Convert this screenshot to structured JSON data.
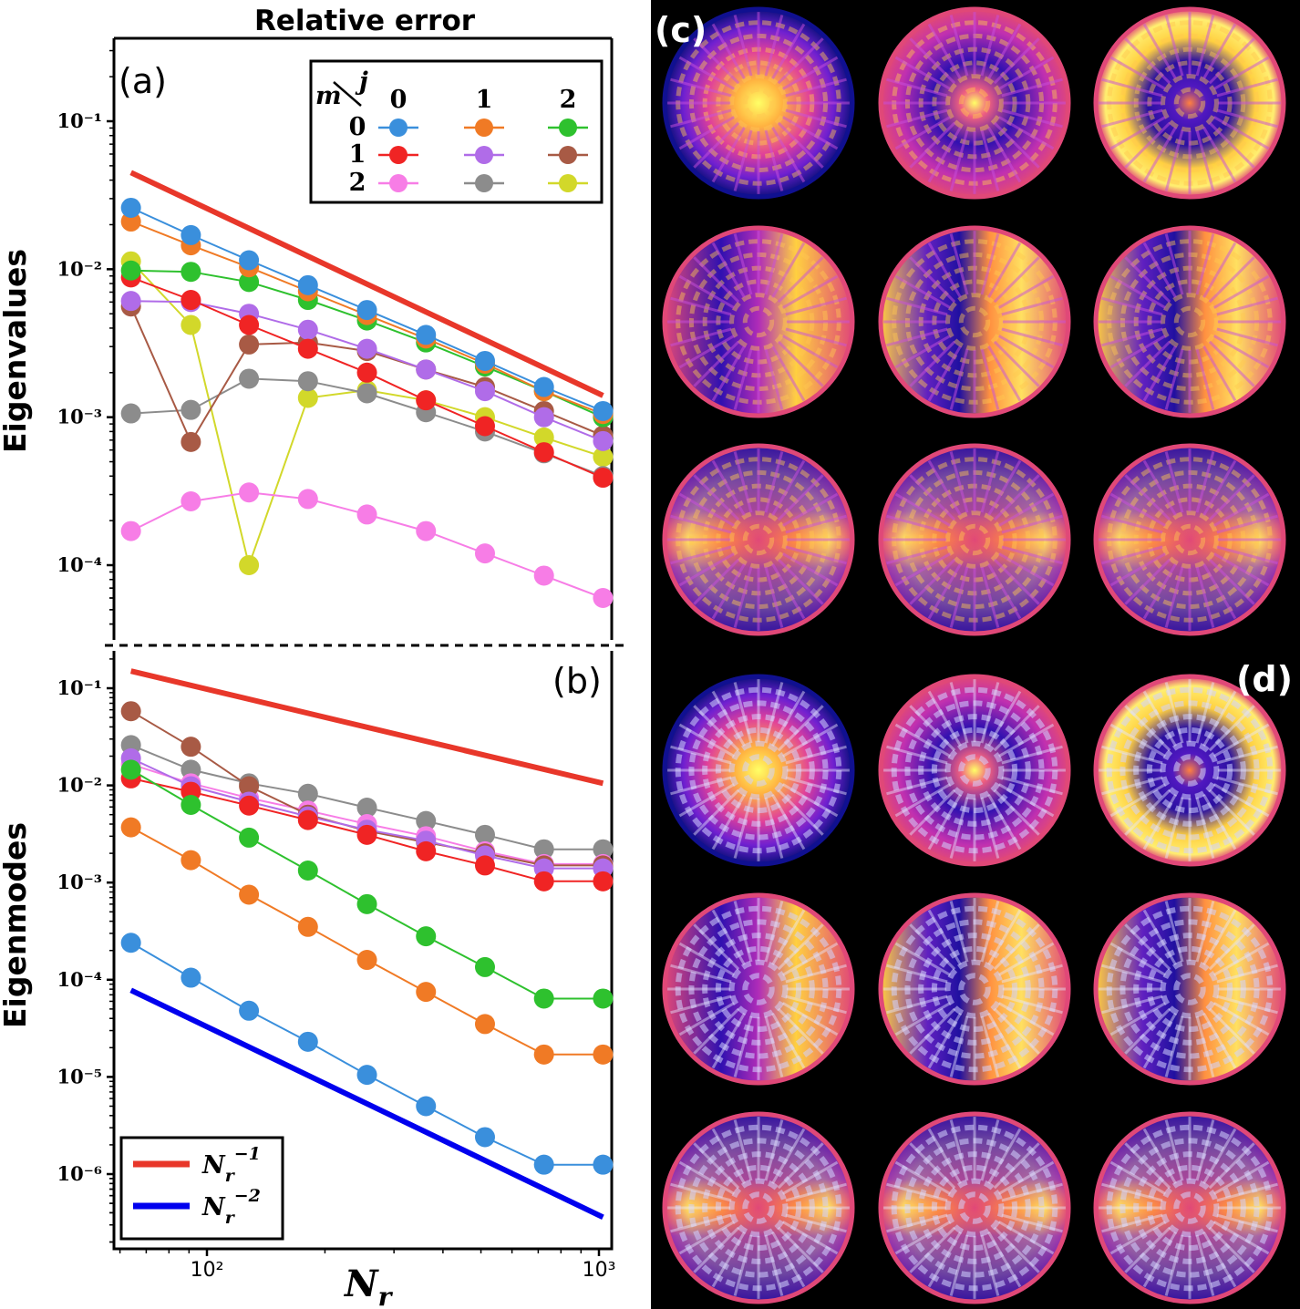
{
  "figure": {
    "title": "Relative error",
    "xlabel_base": "N",
    "xlabel_sub": "r",
    "panel_a": "(a)",
    "panel_b": "(b)",
    "panel_c": "(c)",
    "panel_d": "(d)"
  },
  "legend_top": {
    "header_m": "m",
    "header_j": "j",
    "cols": [
      "0",
      "1",
      "2"
    ],
    "rows": [
      "0",
      "1",
      "2"
    ]
  },
  "legend_bottom": {
    "entries": [
      {
        "base": "N",
        "sub": "r",
        "sup": "−1",
        "color": "#e8372a"
      },
      {
        "base": "N",
        "sub": "r",
        "sup": "−2",
        "color": "#0000ee"
      }
    ]
  },
  "colors": {
    "m0j0": "#3a8fdc",
    "m0j1": "#f07a25",
    "m0j2": "#2ec12e",
    "m1j0": "#f02424",
    "m1j1": "#b06ce8",
    "m1j2": "#a85a45",
    "m2j0": "#f77de6",
    "m2j1": "#8c8c8c",
    "m2j2": "#d2d82a"
  },
  "chart_data": [
    {
      "type": "line",
      "title": "Relative error",
      "ylabel": "Eigenvalues",
      "xlabel": "N_r",
      "xscale": "log",
      "yscale": "log",
      "xlim": [
        57,
        1100
      ],
      "ylim": [
        3e-05,
        0.3
      ],
      "xticks": [
        "10²",
        "10³"
      ],
      "yticks": [
        "10⁻¹",
        "10⁻²",
        "10⁻³",
        "10⁻⁴"
      ],
      "x": [
        64,
        91,
        128,
        181,
        256,
        362,
        512,
        724,
        1024
      ],
      "series": [
        {
          "name": "m=0 j=0",
          "color": "#3a8fdc",
          "values": [
            0.026,
            0.017,
            0.0115,
            0.0078,
            0.0053,
            0.0036,
            0.0024,
            0.0016,
            0.0011
          ]
        },
        {
          "name": "m=0 j=1",
          "color": "#f07a25",
          "values": [
            0.021,
            0.0145,
            0.0103,
            0.0071,
            0.0049,
            0.0034,
            0.0023,
            0.0015,
            0.00105
          ]
        },
        {
          "name": "m=0 j=2",
          "color": "#2ec12e",
          "values": [
            0.0098,
            0.0096,
            0.0082,
            0.0062,
            0.0045,
            0.0032,
            0.0022,
            0.0015,
            0.001
          ]
        },
        {
          "name": "m=1 j=0",
          "color": "#f02424",
          "values": [
            0.0088,
            0.0062,
            0.0042,
            0.0029,
            0.002,
            0.0013,
            0.00087,
            0.00058,
            0.00039
          ]
        },
        {
          "name": "m=1 j=1",
          "color": "#b06ce8",
          "values": [
            0.0061,
            0.006,
            0.005,
            0.0039,
            0.0029,
            0.0021,
            0.0015,
            0.001,
            0.00069
          ]
        },
        {
          "name": "m=1 j=2",
          "color": "#a85a45",
          "values": [
            0.0056,
            0.00068,
            0.0031,
            0.0032,
            0.0028,
            0.0021,
            0.0016,
            0.0011,
            0.00075
          ]
        },
        {
          "name": "m=2 j=0",
          "color": "#f77de6",
          "values": [
            0.00017,
            0.00027,
            0.00031,
            0.00028,
            0.00022,
            0.00017,
            0.00012,
            8.5e-05,
            6e-05
          ]
        },
        {
          "name": "m=2 j=1",
          "color": "#8c8c8c",
          "values": [
            0.00106,
            0.00112,
            0.00182,
            0.00175,
            0.00145,
            0.00108,
            0.0008,
            0.00057,
            0.0004
          ]
        },
        {
          "name": "m=2 j=2",
          "color": "#d2d82a",
          "values": [
            0.0113,
            0.0042,
            0.0001,
            0.00135,
            0.00152,
            0.0013,
            0.001,
            0.00073,
            0.00054
          ]
        }
      ],
      "reference_lines": [
        {
          "name": "N_r^-1",
          "color": "#e8372a",
          "x": [
            64,
            1024
          ],
          "values": [
            0.045,
            0.0014
          ]
        }
      ]
    },
    {
      "type": "line",
      "ylabel": "Eigenmodes",
      "xlabel": "N_r",
      "xscale": "log",
      "yscale": "log",
      "xlim": [
        57,
        1100
      ],
      "ylim": [
        2.5e-07,
        0.25
      ],
      "xticks": [
        "10²",
        "10³"
      ],
      "yticks": [
        "10⁻¹",
        "10⁻²",
        "10⁻³",
        "10⁻⁴",
        "10⁻⁵",
        "10⁻⁶"
      ],
      "x": [
        64,
        91,
        128,
        181,
        256,
        362,
        512,
        724,
        1024
      ],
      "series": [
        {
          "name": "m=0 j=0",
          "color": "#3a8fdc",
          "values": [
            0.00024,
            0.000105,
            4.8e-05,
            2.3e-05,
            1.05e-05,
            5e-06,
            2.4e-06,
            1.25e-06,
            1.25e-06
          ]
        },
        {
          "name": "m=0 j=1",
          "color": "#f07a25",
          "values": [
            0.0037,
            0.0017,
            0.00075,
            0.00035,
            0.00016,
            7.5e-05,
            3.5e-05,
            1.7e-05,
            1.7e-05
          ]
        },
        {
          "name": "m=0 j=2",
          "color": "#2ec12e",
          "values": [
            0.0145,
            0.0063,
            0.0029,
            0.00133,
            0.0006,
            0.00028,
            0.000135,
            6.4e-05,
            6.4e-05
          ]
        },
        {
          "name": "m=1 j=0",
          "color": "#f02424",
          "values": [
            0.0118,
            0.0086,
            0.0062,
            0.0044,
            0.0031,
            0.0021,
            0.0015,
            0.00103,
            0.00103
          ]
        },
        {
          "name": "m=1 j=1",
          "color": "#b06ce8",
          "values": [
            0.019,
            0.0098,
            0.0068,
            0.0048,
            0.0035,
            0.0027,
            0.0019,
            0.0014,
            0.0014
          ]
        },
        {
          "name": "m=1 j=2",
          "color": "#a85a45",
          "values": [
            0.058,
            0.025,
            0.0098,
            0.005,
            0.0034,
            0.0026,
            0.002,
            0.0015,
            0.0015
          ]
        },
        {
          "name": "m=2 j=0",
          "color": "#f77de6",
          "values": [
            0.0165,
            0.0105,
            0.0074,
            0.0055,
            0.004,
            0.003,
            0.0021,
            0.00155,
            0.00155
          ]
        },
        {
          "name": "m=2 j=1",
          "color": "#8c8c8c",
          "values": [
            0.026,
            0.0145,
            0.0105,
            0.0082,
            0.0059,
            0.0043,
            0.0031,
            0.0022,
            0.0022
          ]
        }
      ],
      "reference_lines": [
        {
          "name": "N_r^-1",
          "color": "#e8372a",
          "x": [
            64,
            1024
          ],
          "values": [
            0.15,
            0.0105
          ]
        },
        {
          "name": "N_r^-2",
          "color": "#0000ee",
          "x": [
            64,
            1024
          ],
          "values": [
            7.8e-05,
            3.6e-07
          ]
        }
      ]
    },
    {
      "type": "heatmap",
      "panel": "(c)",
      "grid": [
        3,
        3
      ]
    },
    {
      "type": "heatmap",
      "panel": "(d)",
      "grid": [
        3,
        3
      ]
    }
  ]
}
